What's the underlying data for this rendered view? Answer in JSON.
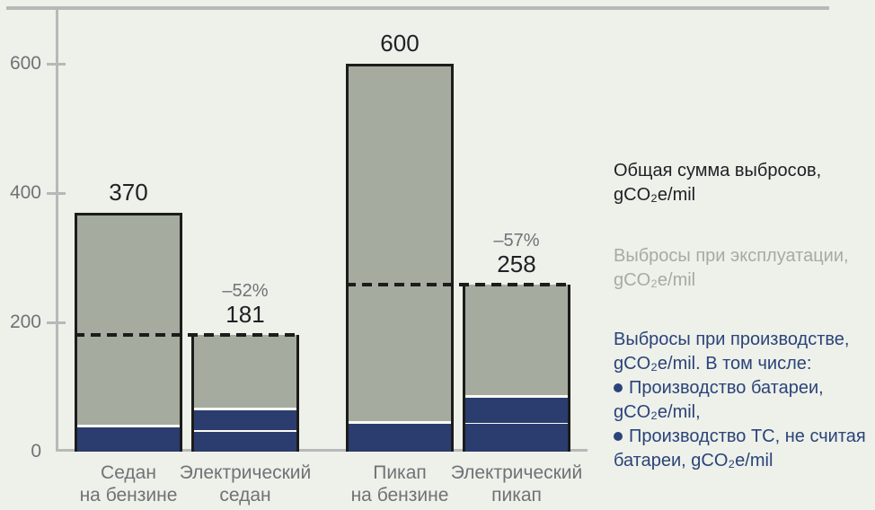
{
  "chart_data": {
    "type": "bar",
    "stacked": true,
    "title": "",
    "xlabel": "",
    "ylabel": "",
    "unit": "gCO₂e/mil",
    "ylim": [
      0,
      690
    ],
    "yticks": [
      0,
      200,
      400,
      600
    ],
    "grid": false,
    "legend_position": "right",
    "categories": [
      "Седан на бензине",
      "Электрический седан",
      "Пикап на бензине",
      "Электрический пикап"
    ],
    "bars": [
      {
        "id": "gas-sedan",
        "label_lines": [
          "Седан",
          "на бензине"
        ],
        "total": 370,
        "total_label": "370",
        "pct_label": null,
        "segments": {
          "operation": 330,
          "battery": 0,
          "vehicle": 40
        }
      },
      {
        "id": "ev-sedan",
        "label_lines": [
          "Электрический",
          "седан"
        ],
        "total": 181,
        "total_label": "181",
        "pct_label": "–52%",
        "segments": {
          "operation": 115,
          "battery": 33,
          "vehicle": 33
        }
      },
      {
        "id": "gas-pickup",
        "label_lines": [
          "Пикап",
          "на бензине"
        ],
        "total": 600,
        "total_label": "600",
        "pct_label": null,
        "segments": {
          "operation": 555,
          "battery": 0,
          "vehicle": 45
        }
      },
      {
        "id": "ev-pickup",
        "label_lines": [
          "Электрический",
          "пикап"
        ],
        "total": 258,
        "total_label": "258",
        "pct_label": "–57%",
        "segments": {
          "operation": 173,
          "battery": 40,
          "vehicle": 45
        }
      }
    ],
    "annotations": [
      "–52%",
      "–57%"
    ],
    "dashed_reference_lines": [
      {
        "at_value": 181,
        "spans_bars": [
          "gas-sedan",
          "ev-sedan"
        ]
      },
      {
        "at_value": 258,
        "spans_bars": [
          "gas-pickup",
          "ev-pickup"
        ]
      }
    ]
  },
  "legend": {
    "blocks": [
      {
        "id": "total-emissions",
        "color_key": "text_dark",
        "lines": [
          {
            "text": "Общая сумма выбросов,"
          },
          {
            "text": "gCO₂e/mil"
          }
        ]
      },
      {
        "id": "operation-emissions",
        "color_key": "legend_operation",
        "lines": [
          {
            "text": "Выбросы при эксплуатации,"
          },
          {
            "text": "gCO₂e/mil"
          }
        ]
      },
      {
        "id": "production-emissions",
        "color_key": "legend_production",
        "lines": [
          {
            "text": "Выбросы при производстве,"
          },
          {
            "text": "gCO₂e/mil. В том числе:"
          },
          {
            "text": "Производство батареи,",
            "bullet": true
          },
          {
            "text": "gCO₂e/mil,"
          },
          {
            "text": "Производство ТС, не считая",
            "bullet": true
          },
          {
            "text": "батареи, gCO₂e/mil"
          }
        ]
      }
    ]
  },
  "colors": {
    "background": "#eef0ea",
    "bar_operation": "#a5ab9e",
    "bar_production": "#2a3d6e",
    "bar_border": "#1c1c1c",
    "dash_line": "#1c1c1c",
    "segment_divider": "#fbfaf3",
    "axis_gray": "#b6b9b7",
    "text_dark": "#202124",
    "text_gray": "#6f7375",
    "legend_operation": "#a8aba0",
    "legend_production": "#2a4479"
  }
}
